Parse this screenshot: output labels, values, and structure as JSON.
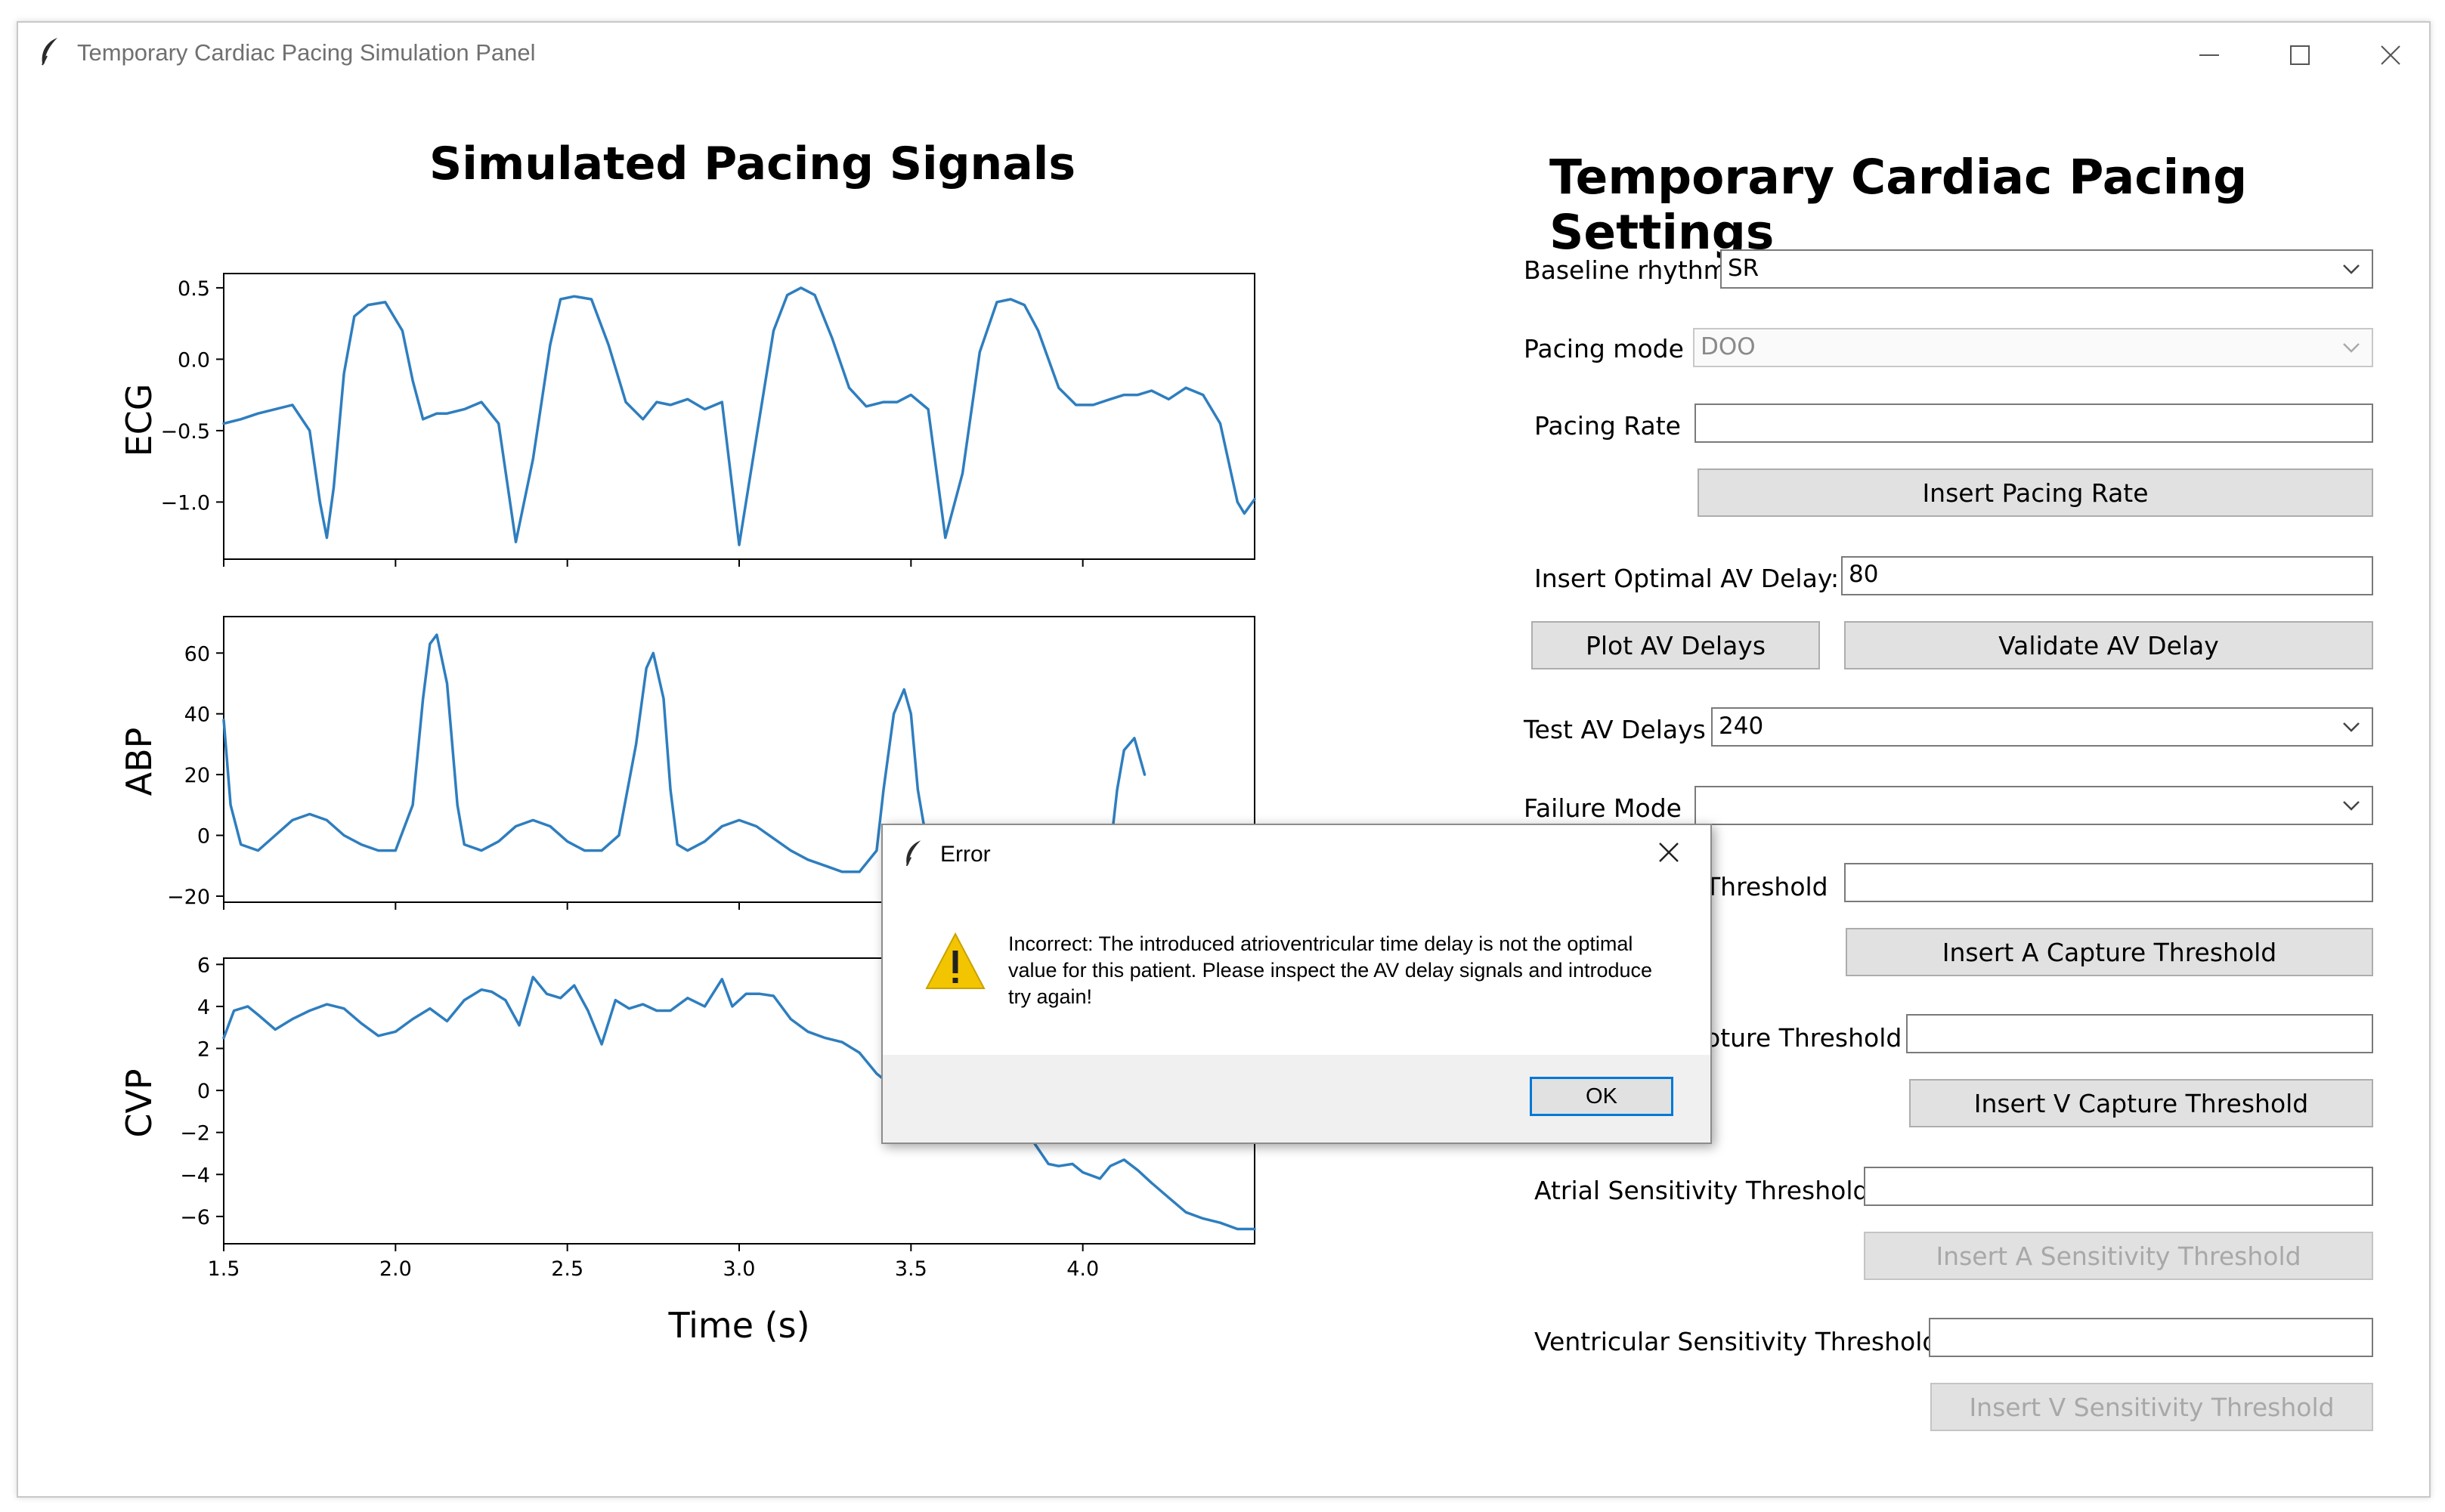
{
  "window": {
    "title": "Temporary Cardiac Pacing Simulation Panel",
    "controls": [
      "minimize-icon",
      "maximize-icon",
      "close-icon"
    ]
  },
  "chart_panel": {
    "title": "Simulated Pacing Signals",
    "xlabel": "Time (s)"
  },
  "chart_data": [
    {
      "type": "line",
      "ylabel": "ECG",
      "xlim": [
        1.5,
        4.5
      ],
      "ylim": [
        -1.4,
        0.6
      ],
      "xticks": [],
      "yticks": [
        0.5,
        0.0,
        -0.5,
        -1.0
      ],
      "ytick_labels": [
        "0.5",
        "0.0",
        "−0.5",
        "−1.0"
      ],
      "color": "#2e7ebf",
      "x": [
        1.5,
        1.55,
        1.6,
        1.65,
        1.7,
        1.75,
        1.78,
        1.8,
        1.82,
        1.85,
        1.88,
        1.92,
        1.97,
        2.02,
        2.05,
        2.08,
        2.12,
        2.15,
        2.2,
        2.25,
        2.3,
        2.35,
        2.4,
        2.45,
        2.48,
        2.52,
        2.57,
        2.62,
        2.67,
        2.72,
        2.76,
        2.8,
        2.85,
        2.9,
        2.95,
        3.0,
        3.05,
        3.1,
        3.14,
        3.18,
        3.22,
        3.27,
        3.32,
        3.37,
        3.42,
        3.46,
        3.5,
        3.55,
        3.6,
        3.65,
        3.7,
        3.75,
        3.79,
        3.83,
        3.87,
        3.93,
        3.98,
        4.03,
        4.08,
        4.12,
        4.16,
        4.2,
        4.25,
        4.3,
        4.35,
        4.4,
        4.45,
        4.47,
        4.5
      ],
      "y": [
        -0.45,
        -0.42,
        -0.38,
        -0.35,
        -0.32,
        -0.5,
        -1.0,
        -1.25,
        -0.9,
        -0.1,
        0.3,
        0.38,
        0.4,
        0.2,
        -0.15,
        -0.42,
        -0.38,
        -0.38,
        -0.35,
        -0.3,
        -0.45,
        -1.28,
        -0.7,
        0.1,
        0.42,
        0.44,
        0.42,
        0.1,
        -0.3,
        -0.42,
        -0.3,
        -0.32,
        -0.28,
        -0.35,
        -0.3,
        -1.3,
        -0.55,
        0.2,
        0.45,
        0.5,
        0.45,
        0.15,
        -0.2,
        -0.33,
        -0.3,
        -0.3,
        -0.25,
        -0.35,
        -1.25,
        -0.8,
        0.05,
        0.4,
        0.42,
        0.38,
        0.2,
        -0.2,
        -0.32,
        -0.32,
        -0.28,
        -0.25,
        -0.25,
        -0.22,
        -0.28,
        -0.2,
        -0.25,
        -0.45,
        -1.0,
        -1.08,
        -0.98
      ]
    },
    {
      "type": "line",
      "ylabel": "ABP",
      "xlim": [
        1.5,
        4.5
      ],
      "ylim": [
        -22,
        72
      ],
      "xticks": [],
      "yticks": [
        60,
        40,
        20,
        0,
        -20
      ],
      "ytick_labels": [
        "60",
        "40",
        "20",
        "0",
        "−20"
      ],
      "color": "#2e7ebf",
      "x": [
        1.5,
        1.52,
        1.55,
        1.6,
        1.65,
        1.7,
        1.75,
        1.8,
        1.85,
        1.9,
        1.95,
        2.0,
        2.05,
        2.08,
        2.1,
        2.12,
        2.15,
        2.18,
        2.2,
        2.25,
        2.3,
        2.35,
        2.4,
        2.45,
        2.5,
        2.55,
        2.6,
        2.65,
        2.7,
        2.73,
        2.75,
        2.78,
        2.8,
        2.82,
        2.85,
        2.9,
        2.95,
        3.0,
        3.05,
        3.1,
        3.15,
        3.2,
        3.25,
        3.3,
        3.35,
        3.4,
        3.42,
        3.45,
        3.48,
        3.5,
        3.52,
        3.55,
        3.6,
        3.65,
        3.7,
        3.75,
        3.8,
        3.85,
        3.9,
        3.95,
        4.0,
        4.05,
        4.08,
        4.1,
        4.12,
        4.15,
        4.18
      ],
      "y": [
        38,
        10,
        -3,
        -5,
        0,
        5,
        7,
        5,
        0,
        -3,
        -5,
        -5,
        10,
        45,
        63,
        66,
        50,
        10,
        -3,
        -5,
        -2,
        3,
        5,
        3,
        -2,
        -5,
        -5,
        0,
        30,
        55,
        60,
        45,
        15,
        -3,
        -5,
        -2,
        3,
        5,
        3,
        -1,
        -5,
        -8,
        -10,
        -12,
        -12,
        -5,
        15,
        40,
        48,
        40,
        15,
        -5,
        -8,
        -10,
        -10,
        -10,
        -10,
        -9,
        -9,
        -8,
        -8,
        -8,
        -5,
        15,
        28,
        32,
        20
      ]
    },
    {
      "type": "line",
      "ylabel": "CVP",
      "xlim": [
        1.5,
        4.5
      ],
      "ylim": [
        -7.3,
        6.3
      ],
      "xticks": [
        1.5,
        2.0,
        2.5,
        3.0,
        3.5,
        4.0
      ],
      "xtick_labels": [
        "1.5",
        "2.0",
        "2.5",
        "3.0",
        "3.5",
        "4.0"
      ],
      "yticks": [
        6,
        4,
        2,
        0,
        -2,
        -4,
        -6
      ],
      "ytick_labels": [
        "6",
        "4",
        "2",
        "0",
        "−2",
        "−4",
        "−6"
      ],
      "color": "#2e7ebf",
      "x": [
        1.5,
        1.53,
        1.57,
        1.6,
        1.65,
        1.7,
        1.75,
        1.8,
        1.85,
        1.9,
        1.95,
        2.0,
        2.05,
        2.1,
        2.15,
        2.2,
        2.25,
        2.28,
        2.32,
        2.36,
        2.4,
        2.44,
        2.48,
        2.52,
        2.56,
        2.6,
        2.64,
        2.68,
        2.72,
        2.76,
        2.8,
        2.85,
        2.9,
        2.95,
        2.98,
        3.02,
        3.06,
        3.1,
        3.15,
        3.2,
        3.25,
        3.3,
        3.35,
        3.4,
        3.5,
        3.6,
        3.7,
        3.75,
        3.8,
        3.85,
        3.9,
        3.93,
        3.97,
        4.0,
        4.05,
        4.08,
        4.12,
        4.16,
        4.2,
        4.25,
        4.3,
        4.35,
        4.4,
        4.45,
        4.5
      ],
      "y": [
        2.5,
        3.8,
        4.0,
        3.6,
        2.9,
        3.4,
        3.8,
        4.1,
        3.9,
        3.2,
        2.6,
        2.8,
        3.4,
        3.9,
        3.3,
        4.3,
        4.8,
        4.7,
        4.3,
        3.1,
        5.4,
        4.6,
        4.4,
        5.0,
        3.8,
        2.2,
        4.3,
        3.9,
        4.1,
        3.8,
        3.8,
        4.4,
        4.0,
        5.3,
        4.0,
        4.6,
        4.6,
        4.5,
        3.4,
        2.8,
        2.5,
        2.3,
        1.8,
        0.8,
        -0.5,
        -0.8,
        -0.8,
        -1.0,
        -1.5,
        -2.3,
        -3.5,
        -3.6,
        -3.5,
        -3.9,
        -4.2,
        -3.6,
        -3.3,
        -3.8,
        -4.4,
        -5.1,
        -5.8,
        -6.1,
        -6.3,
        -6.6,
        -6.6
      ]
    }
  ],
  "settings": {
    "title": "Temporary Cardiac Pacing Settings",
    "baseline_rhythm": {
      "label": "Baseline rhythm",
      "value": "SR"
    },
    "pacing_mode": {
      "label": "Pacing mode",
      "value": "DOO"
    },
    "pacing_rate": {
      "label": "Pacing Rate",
      "value": "",
      "button": "Insert Pacing Rate"
    },
    "av_delay": {
      "label": "Insert Optimal AV Delay:",
      "value": "80",
      "plot_button": "Plot AV Delays",
      "validate_button": "Validate AV Delay"
    },
    "test_av": {
      "label": "Test AV Delays",
      "value": "240"
    },
    "failure_mode": {
      "label": "Failure Mode",
      "value": ""
    },
    "a_capture": {
      "label_visible": "Threshold",
      "value": "",
      "button": "Insert A Capture Threshold"
    },
    "v_capture": {
      "label_visible": "oture Threshold",
      "value": "",
      "button": "Insert V Capture Threshold"
    },
    "a_sensitivity": {
      "label": "Atrial Sensitivity Threshold",
      "value": "",
      "button": "Insert A Sensitivity Threshold"
    },
    "v_sensitivity": {
      "label": "Ventricular Sensitivity Threshold",
      "value": "",
      "button": "Insert V Sensitivity Threshold"
    }
  },
  "dialog": {
    "title": "Error",
    "message": "Incorrect: The introduced atrioventricular time delay is not the optimal value for this patient. Please inspect the AV delay signals and introduce try again!",
    "ok_label": "OK",
    "icon": "warning-icon"
  },
  "colors": {
    "line": "#2e7ebf",
    "warning": "#f3c400",
    "focus": "#0078d7"
  }
}
